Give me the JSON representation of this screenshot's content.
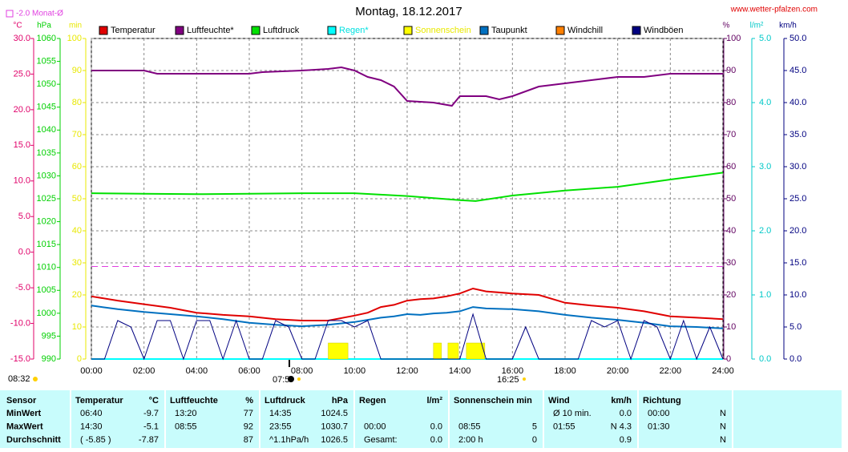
{
  "chart_data": {
    "type": "line",
    "title": "Montag, 18.12.2017",
    "source": "www.wetter-pfalzen.com",
    "reference": {
      "label": "-2.0 Monat-Ø",
      "value": -2,
      "axis": 0,
      "color": "#e040e0"
    },
    "xlim": [
      0,
      24
    ],
    "xticks": [
      {
        "value": 0,
        "label": "00:00"
      },
      {
        "value": 2,
        "label": "02:00"
      },
      {
        "value": 4,
        "label": "04:00"
      },
      {
        "value": 6,
        "label": "06:00"
      },
      {
        "value": 8,
        "label": "08:00"
      },
      {
        "value": 10,
        "label": "10:00"
      },
      {
        "value": 12,
        "label": "12:00"
      },
      {
        "value": 14,
        "label": "14:00"
      },
      {
        "value": 16,
        "label": "16:00"
      },
      {
        "value": 18,
        "label": "18:00"
      },
      {
        "value": 20,
        "label": "20:00"
      },
      {
        "value": 22,
        "label": "22:00"
      },
      {
        "value": 24,
        "label": "24:00"
      }
    ],
    "grid": true,
    "grid_axis": 3,
    "axes": [
      {
        "label": "°C",
        "color": "#e0006a",
        "lim": [
          -15,
          30
        ],
        "ticks": [
          {
            "value": -15,
            "label": "-15.0"
          },
          {
            "value": -10,
            "label": "-10.0"
          },
          {
            "value": -5,
            "label": "-5.0"
          },
          {
            "value": 0,
            "label": "0.0"
          },
          {
            "value": 5,
            "label": "5.0"
          },
          {
            "value": 10,
            "label": "10.0"
          },
          {
            "value": 15,
            "label": "15.0"
          },
          {
            "value": 20,
            "label": "20.0"
          },
          {
            "value": 25,
            "label": "25.0"
          },
          {
            "value": 30,
            "label": "30.0"
          }
        ]
      },
      {
        "label": "hPa",
        "color": "#00d000",
        "lim": [
          990,
          1060
        ],
        "ticks": [
          990,
          995,
          1000,
          1005,
          1010,
          1015,
          1020,
          1025,
          1030,
          1035,
          1040,
          1045,
          1050,
          1055,
          1060
        ]
      },
      {
        "label": "min",
        "color": "#e8e800",
        "lim": [
          0,
          100
        ],
        "ticks": [
          0,
          10,
          20,
          30,
          40,
          50,
          60,
          70,
          80,
          90,
          100
        ]
      },
      {
        "label": "%",
        "color": "#600060",
        "lim": [
          0,
          100
        ],
        "ticks": [
          0,
          10,
          20,
          30,
          40,
          50,
          60,
          70,
          80,
          90,
          100
        ]
      },
      {
        "label": "l/m²",
        "color": "#00c8c8",
        "lim": [
          0,
          5
        ],
        "ticks": [
          {
            "value": 0,
            "label": "0.0"
          },
          {
            "value": 1,
            "label": "1.0"
          },
          {
            "value": 2,
            "label": "2.0"
          },
          {
            "value": 3,
            "label": "3.0"
          },
          {
            "value": 4,
            "label": "4.0"
          },
          {
            "value": 5,
            "label": "5.0"
          }
        ]
      },
      {
        "label": "km/h",
        "color": "#000080",
        "lim": [
          0,
          50
        ],
        "ticks": [
          {
            "value": 0,
            "label": "0.0"
          },
          {
            "value": 5,
            "label": "5.0"
          },
          {
            "value": 10,
            "label": "10.0"
          },
          {
            "value": 15,
            "label": "15.0"
          },
          {
            "value": 20,
            "label": "20.0"
          },
          {
            "value": 25,
            "label": "25.0"
          },
          {
            "value": 30,
            "label": "30.0"
          },
          {
            "value": 35,
            "label": "35.0"
          },
          {
            "value": 40,
            "label": "40.0"
          },
          {
            "value": 45,
            "label": "45.0"
          },
          {
            "value": 50,
            "label": "50.0"
          }
        ]
      }
    ],
    "series": [
      {
        "name": "Temperatur",
        "color": "#e00000",
        "axis": 0,
        "x": [
          0,
          1,
          2,
          3,
          4,
          5,
          6,
          7,
          8,
          9,
          10,
          10.5,
          11,
          11.5,
          12,
          12.5,
          13,
          13.5,
          14,
          14.5,
          15,
          16,
          17,
          18,
          19,
          20,
          21,
          22,
          23,
          24
        ],
        "values": [
          -6.2,
          -6.8,
          -7.3,
          -7.8,
          -8.5,
          -8.8,
          -9.0,
          -9.4,
          -9.6,
          -9.6,
          -8.9,
          -8.5,
          -7.7,
          -7.4,
          -6.8,
          -6.6,
          -6.5,
          -6.2,
          -5.8,
          -5.1,
          -5.5,
          -5.8,
          -6.0,
          -7.1,
          -7.5,
          -7.8,
          -8.3,
          -9.0,
          -9.2,
          -9.4
        ]
      },
      {
        "name": "Luftfeuchte*",
        "color": "#800080",
        "axis": 3,
        "x": [
          0,
          2,
          2.5,
          4,
          6,
          6.5,
          8,
          9,
          9.5,
          10,
          10.5,
          11,
          11.5,
          12,
          13,
          13.7,
          14,
          15,
          15.5,
          16,
          17,
          18,
          19,
          20,
          21,
          22,
          23,
          24
        ],
        "values": [
          90,
          90,
          89,
          89,
          89,
          89.5,
          90,
          90.5,
          91,
          90,
          88,
          87,
          85,
          80.5,
          80,
          79,
          82,
          82,
          81,
          82,
          85,
          86,
          87,
          88,
          88,
          89,
          89,
          89
        ]
      },
      {
        "name": "Luftdruck",
        "color": "#00e000",
        "axis": 1,
        "x": [
          0,
          2,
          4,
          6,
          8,
          10,
          12,
          14,
          14.6,
          16,
          18,
          20,
          22,
          24
        ],
        "values": [
          1026.2,
          1026.1,
          1026.0,
          1026.1,
          1026.2,
          1026.2,
          1025.6,
          1024.7,
          1024.5,
          1025.7,
          1026.8,
          1027.6,
          1029.2,
          1030.7
        ]
      },
      {
        "name": "Regen*",
        "color": "#00ffff",
        "label_color": "#00e0e0",
        "axis": 4,
        "x": [
          0,
          24
        ],
        "values": [
          0,
          0
        ]
      },
      {
        "name": "Sonnenschein",
        "color": "#ffff00",
        "label_color": "#e8e800",
        "axis": 2,
        "kind": "bar",
        "x": [
          9.0,
          13.0,
          13.55,
          14.25
        ],
        "x_end": [
          9.75,
          13.3,
          13.95,
          14.95
        ],
        "values": [
          5,
          5,
          5,
          5
        ]
      },
      {
        "name": "Taupunkt",
        "color": "#0070c0",
        "axis": 0,
        "x": [
          0,
          1,
          2,
          3,
          4,
          5,
          6,
          7,
          8,
          9,
          10,
          10.5,
          11,
          11.5,
          12,
          12.5,
          13,
          13.5,
          14,
          14.5,
          15,
          16,
          17,
          18,
          19,
          20,
          21,
          22,
          23,
          24
        ],
        "values": [
          -7.5,
          -8.0,
          -8.4,
          -8.7,
          -9.0,
          -9.4,
          -9.9,
          -10.2,
          -10.4,
          -10.2,
          -9.8,
          -9.5,
          -9.2,
          -9.0,
          -8.7,
          -8.8,
          -8.6,
          -8.5,
          -8.3,
          -7.7,
          -7.9,
          -8.0,
          -8.3,
          -8.8,
          -9.2,
          -9.5,
          -9.9,
          -10.4,
          -10.5,
          -10.7
        ]
      },
      {
        "name": "Windchill",
        "color": "#ff8000",
        "axis": 0,
        "x": [],
        "values": []
      },
      {
        "name": "Windböen",
        "color": "#000080",
        "axis": 5,
        "x": [
          0,
          0.5,
          1,
          1.5,
          2,
          2.5,
          3,
          3.5,
          4,
          4.5,
          5,
          5.5,
          6,
          6.5,
          7,
          7.5,
          8,
          8.5,
          9,
          9.5,
          10,
          10.5,
          11,
          11.5,
          12,
          12.5,
          13,
          13.5,
          14,
          14.5,
          15,
          15.5,
          16,
          16.5,
          17,
          17.5,
          18,
          18.5,
          19,
          19.5,
          20,
          20.5,
          21,
          21.5,
          22,
          22.5,
          23,
          23.5,
          24
        ],
        "values": [
          0,
          0,
          6,
          5,
          0,
          6,
          6,
          0,
          6,
          6,
          0,
          6,
          0,
          0,
          6,
          5,
          0,
          0,
          6,
          6,
          5,
          6,
          0,
          0,
          0,
          0,
          0,
          0,
          0,
          7,
          0,
          0,
          0,
          5,
          0,
          0,
          0,
          0,
          6,
          5,
          6,
          0,
          6,
          5,
          0,
          6,
          0,
          5,
          0
        ]
      }
    ],
    "annotations": [
      "08:32",
      "07:5",
      "16:25"
    ]
  },
  "table": {
    "header": [
      [
        "Sensor"
      ],
      [
        "Temperatur",
        "°C"
      ],
      [
        "Luftfeuchte",
        "%"
      ],
      [
        "Luftdruck",
        "hPa"
      ],
      [
        "Regen",
        "l/m²"
      ],
      [
        "Sonnenschein min"
      ],
      [
        "Wind",
        "km/h"
      ],
      [
        "Richtung"
      ]
    ],
    "rows": [
      {
        "label": "MinWert",
        "cells": [
          [
            "06:40",
            "-9.7"
          ],
          [
            "13:20",
            "77"
          ],
          [
            "14:35",
            "1024.5"
          ],
          null,
          null,
          [
            "Ø 10 min.",
            "0.0"
          ],
          [
            "00:00",
            "N"
          ]
        ]
      },
      {
        "label": "MaxWert",
        "cells": [
          [
            "14:30",
            "-5.1"
          ],
          [
            "08:55",
            "92"
          ],
          [
            "23:55",
            "1030.7"
          ],
          [
            "00:00",
            "0.0"
          ],
          [
            "08:55",
            "5"
          ],
          [
            "01:55",
            "N 4.3"
          ],
          [
            "01:30",
            "N"
          ]
        ]
      },
      {
        "label": "Durchschnitt",
        "cells": [
          [
            "( -5.85 )",
            "-7.87"
          ],
          [
            null,
            "87"
          ],
          [
            "^1.1hPa/h",
            "1026.5"
          ],
          [
            "Gesamt:",
            "0.0"
          ],
          [
            "2:00 h",
            "0"
          ],
          [
            null,
            "0.9"
          ],
          [
            null,
            "N"
          ]
        ]
      }
    ]
  }
}
